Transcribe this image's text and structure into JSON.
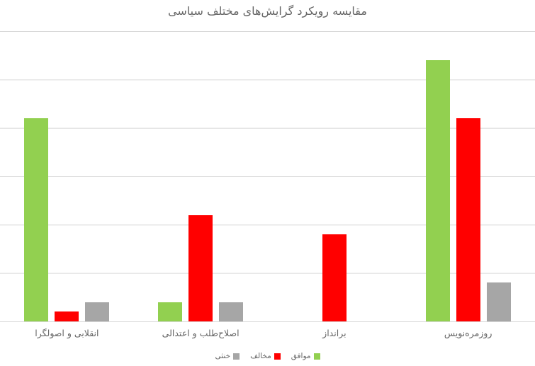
{
  "title": "مقایسه رویکرد گرایش‌های مختلف سیاسی",
  "colors": {
    "agree": "#92D050",
    "oppose": "#FF0000",
    "neutral": "#A6A6A6",
    "gridline": "#D9D9D9",
    "text": "#666666",
    "background": "#FFFFFF"
  },
  "chart_data": {
    "type": "bar",
    "title": "مقایسه رویکرد گرایش‌های مختلف سیاسی",
    "direction": "rtl-labels, ltr-plot",
    "categories": [
      "انقلابی و اصولگرا",
      "اصلاح‌طلب و اعتدالی",
      "برانداز",
      "روزمره‌نویس"
    ],
    "series": [
      {
        "id": "agree",
        "name": "موافق",
        "color": "#92D050",
        "values": [
          42,
          4,
          0,
          54
        ]
      },
      {
        "id": "oppose",
        "name": "مخالف",
        "color": "#FF0000",
        "values": [
          2,
          22,
          18,
          42
        ]
      },
      {
        "id": "neutral",
        "name": "خنثی",
        "color": "#A6A6A6",
        "values": [
          4,
          4,
          0,
          8
        ]
      }
    ],
    "xlabel": "",
    "ylabel": "",
    "ylim": [
      0,
      60
    ],
    "gridline_step": 10,
    "grid": "horizontal gridlines only, no visible axis value labels",
    "legend_position": "bottom-center"
  }
}
